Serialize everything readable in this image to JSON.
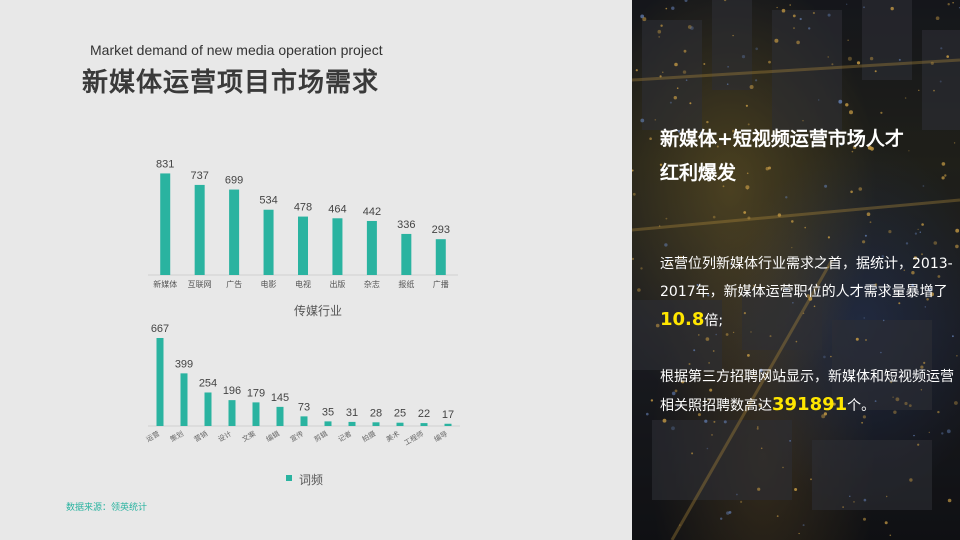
{
  "header": {
    "subtitle_en": "Market demand of new media operation project",
    "title_cn": "新媒体运营项目市场需求"
  },
  "colors": {
    "bar": "#2ab3a0",
    "accent_highlight": "#ffe600"
  },
  "chart_data": [
    {
      "type": "bar",
      "categories": [
        "新媒体",
        "互联网",
        "广告",
        "电影",
        "电视",
        "出版",
        "杂志",
        "报纸",
        "广播"
      ],
      "values": [
        831,
        737,
        699,
        534,
        478,
        464,
        442,
        336,
        293
      ],
      "xlabel": "传媒行业",
      "legend": "",
      "ylim": [
        0,
        900
      ],
      "grid": false
    },
    {
      "type": "bar",
      "categories": [
        "运营",
        "策划",
        "营销",
        "设计",
        "文案",
        "编辑",
        "宣传",
        "剪辑",
        "记者",
        "拍摄",
        "美术",
        "工程师",
        "编导"
      ],
      "values": [
        667,
        399,
        254,
        196,
        179,
        145,
        73,
        35,
        31,
        28,
        25,
        22,
        17
      ],
      "legend": "词频",
      "ylim": [
        0,
        720
      ],
      "grid": false
    }
  ],
  "source": "数据来源：领英统计",
  "panel": {
    "headline_line1": "新媒体+短视频运营市场人才",
    "headline_line2": "红利爆发",
    "p1_text_a": "运营位列新媒体行业需求之首，据统计，2013-2017年，新媒体运营职位的人才需求量暴增了",
    "p1_highlight": "10.8",
    "p1_text_b": "倍;",
    "p2_text_a": "根据第三方招聘网站显示，新媒体和短视频运营相关照招聘数高达",
    "p2_highlight": "391891",
    "p2_text_b": "个。"
  }
}
